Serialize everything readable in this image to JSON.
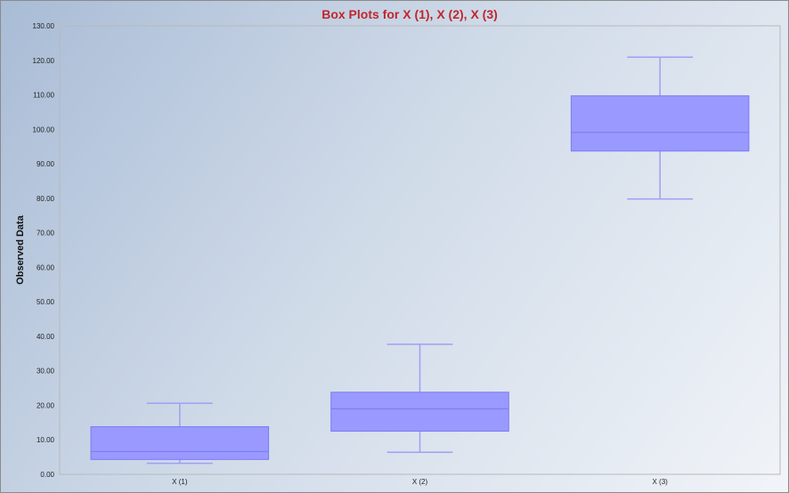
{
  "chart_data": {
    "type": "box",
    "title": "Box Plots for X (1), X (2), X (3)",
    "xlabel": "",
    "ylabel": "Observed Data",
    "ylim": [
      0,
      130
    ],
    "yticks": [
      0,
      10,
      20,
      30,
      40,
      50,
      60,
      70,
      80,
      90,
      100,
      110,
      120,
      130
    ],
    "ytick_labels": [
      "0.00",
      "10.00",
      "20.00",
      "30.00",
      "40.00",
      "50.00",
      "60.00",
      "70.00",
      "80.00",
      "90.00",
      "100.00",
      "110.00",
      "120.00",
      "130.00"
    ],
    "categories": [
      "X (1)",
      "X (2)",
      "X (3)"
    ],
    "boxes": [
      {
        "min": 3.2,
        "q1": 4.3,
        "median": 6.6,
        "q3": 13.8,
        "max": 20.6
      },
      {
        "min": 6.4,
        "q1": 12.5,
        "median": 19.0,
        "q3": 23.8,
        "max": 37.7
      },
      {
        "min": 79.8,
        "q1": 93.7,
        "median": 99.1,
        "q3": 109.7,
        "max": 120.9
      }
    ],
    "grid": false,
    "colors": {
      "box_fill": "#9999ff",
      "box_stroke": "#7b7bf0",
      "whisker": "#9f9ff5",
      "title": "#c0272d",
      "axis": "#b9b9b9"
    }
  }
}
